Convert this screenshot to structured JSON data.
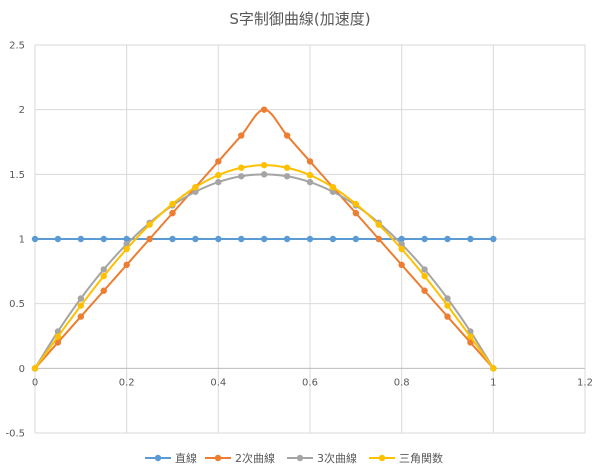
{
  "chart_data": {
    "type": "scatter",
    "title": "S字制御曲線(加速度)",
    "xlabel": "",
    "ylabel": "",
    "xlim": [
      0,
      1.2
    ],
    "ylim": [
      -0.5,
      2.5
    ],
    "xticks": [
      0,
      0.2,
      0.4,
      0.6,
      0.8,
      1,
      1.2
    ],
    "yticks": [
      -0.5,
      0,
      0.5,
      1,
      1.5,
      2,
      2.5
    ],
    "xtick_labels": [
      "0",
      "0.2",
      "0.4",
      "0.6",
      "0.8",
      "1",
      "1.2"
    ],
    "ytick_labels": [
      "-0.5",
      "0",
      "0.5",
      "1",
      "1.5",
      "2",
      "2.5"
    ],
    "grid": true,
    "legend_position": "bottom",
    "x": [
      0,
      0.05,
      0.1,
      0.15,
      0.2,
      0.25,
      0.3,
      0.35,
      0.4,
      0.45,
      0.5,
      0.55,
      0.6,
      0.65,
      0.7,
      0.75,
      0.8,
      0.85,
      0.9,
      0.95,
      1
    ],
    "series": [
      {
        "name": "直線",
        "color": "#5b9bd5",
        "values": [
          1,
          1,
          1,
          1,
          1,
          1,
          1,
          1,
          1,
          1,
          1,
          1,
          1,
          1,
          1,
          1,
          1,
          1,
          1,
          1,
          1
        ],
        "start_value": 1
      },
      {
        "name": "2次曲線",
        "color": "#ed7d31",
        "values": [
          0,
          0.2,
          0.4,
          0.6,
          0.8,
          1.0,
          1.2,
          1.4,
          1.6,
          1.8,
          2.0,
          1.8,
          1.6,
          1.4,
          1.2,
          1.0,
          0.8,
          0.6,
          0.4,
          0.2,
          0
        ]
      },
      {
        "name": "3次曲線",
        "color": "#a5a5a5",
        "values": [
          0,
          0.285,
          0.54,
          0.765,
          0.96,
          1.125,
          1.26,
          1.365,
          1.44,
          1.485,
          1.5,
          1.485,
          1.44,
          1.365,
          1.26,
          1.125,
          0.96,
          0.765,
          0.54,
          0.285,
          0
        ]
      },
      {
        "name": "三角関数",
        "color": "#ffc000",
        "values": [
          0,
          0.245,
          0.485,
          0.713,
          0.923,
          1.111,
          1.271,
          1.4,
          1.494,
          1.551,
          1.571,
          1.551,
          1.494,
          1.4,
          1.271,
          1.111,
          0.923,
          0.713,
          0.485,
          0.245,
          0
        ]
      }
    ]
  }
}
